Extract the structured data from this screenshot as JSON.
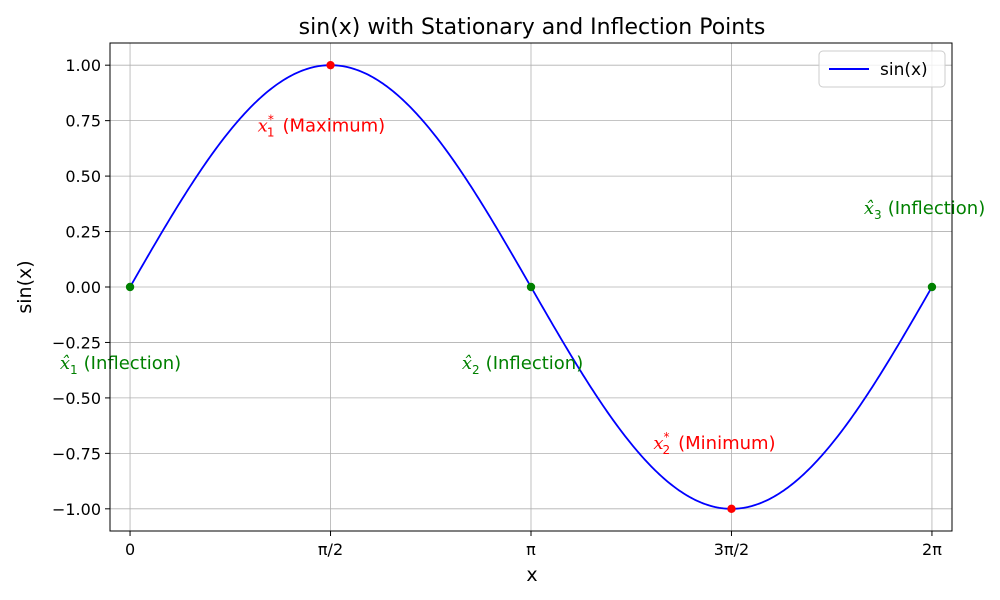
{
  "chart_data": {
    "type": "line",
    "title": "sin(x) with Stationary and Inflection Points",
    "xlabel": "x",
    "ylabel": "sin(x)",
    "xlim": [
      -0.1571,
      6.4403
    ],
    "ylim": [
      -1.1,
      1.1
    ],
    "grid": true,
    "legend_position": "top-right",
    "x_ticks": [
      {
        "value": 0,
        "label": "0"
      },
      {
        "value": 1.5708,
        "label": "π/2"
      },
      {
        "value": 3.1416,
        "label": "π"
      },
      {
        "value": 4.7124,
        "label": "3π/2"
      },
      {
        "value": 6.2832,
        "label": "2π"
      }
    ],
    "y_ticks": [
      {
        "value": 1.0,
        "label": "1.00"
      },
      {
        "value": 0.75,
        "label": "0.75"
      },
      {
        "value": 0.5,
        "label": "0.50"
      },
      {
        "value": 0.25,
        "label": "0.25"
      },
      {
        "value": 0.0,
        "label": "0.00"
      },
      {
        "value": -0.25,
        "label": "−0.25"
      },
      {
        "value": -0.5,
        "label": "−0.50"
      },
      {
        "value": -0.75,
        "label": "−0.75"
      },
      {
        "value": -1.0,
        "label": "−1.00"
      }
    ],
    "series": [
      {
        "name": "sin(x)",
        "function": "sin",
        "x_range": [
          0,
          6.2832
        ],
        "color": "#0000ff"
      }
    ],
    "points": [
      {
        "name": "maximum",
        "x": 1.5708,
        "y": 1.0,
        "color": "#ff0000"
      },
      {
        "name": "minimum",
        "x": 4.7124,
        "y": -1.0,
        "color": "#ff0000"
      },
      {
        "name": "inflection-1",
        "x": 0.0,
        "y": 0.0,
        "color": "#008000"
      },
      {
        "name": "inflection-2",
        "x": 3.1416,
        "y": 0.0,
        "color": "#008000"
      },
      {
        "name": "inflection-3",
        "x": 6.2832,
        "y": 0.0,
        "color": "#008000"
      }
    ],
    "annotations": [
      {
        "name": "annotation-max",
        "var": "x",
        "sub": "1",
        "sup": "*",
        "text": "(Maximum)",
        "x": 1.0,
        "y": 0.7,
        "color": "#ff0000"
      },
      {
        "name": "annotation-min",
        "var": "x",
        "sub": "2",
        "sup": "*",
        "text": "(Minimum)",
        "x": 4.1,
        "y": -0.73,
        "color": "#ff0000"
      },
      {
        "name": "annotation-inflection-1",
        "var": "x̂",
        "sub": "1",
        "sup": "",
        "text": "(Inflection)",
        "x": -0.55,
        "y": -0.37,
        "color": "#008000"
      },
      {
        "name": "annotation-inflection-2",
        "var": "x̂",
        "sub": "2",
        "sup": "",
        "text": "(Inflection)",
        "x": 2.6,
        "y": -0.37,
        "color": "#008000"
      },
      {
        "name": "annotation-inflection-3",
        "var": "x̂",
        "sub": "3",
        "sup": "",
        "text": "(Inflection)",
        "x": 5.75,
        "y": 0.33,
        "color": "#008000"
      }
    ]
  }
}
